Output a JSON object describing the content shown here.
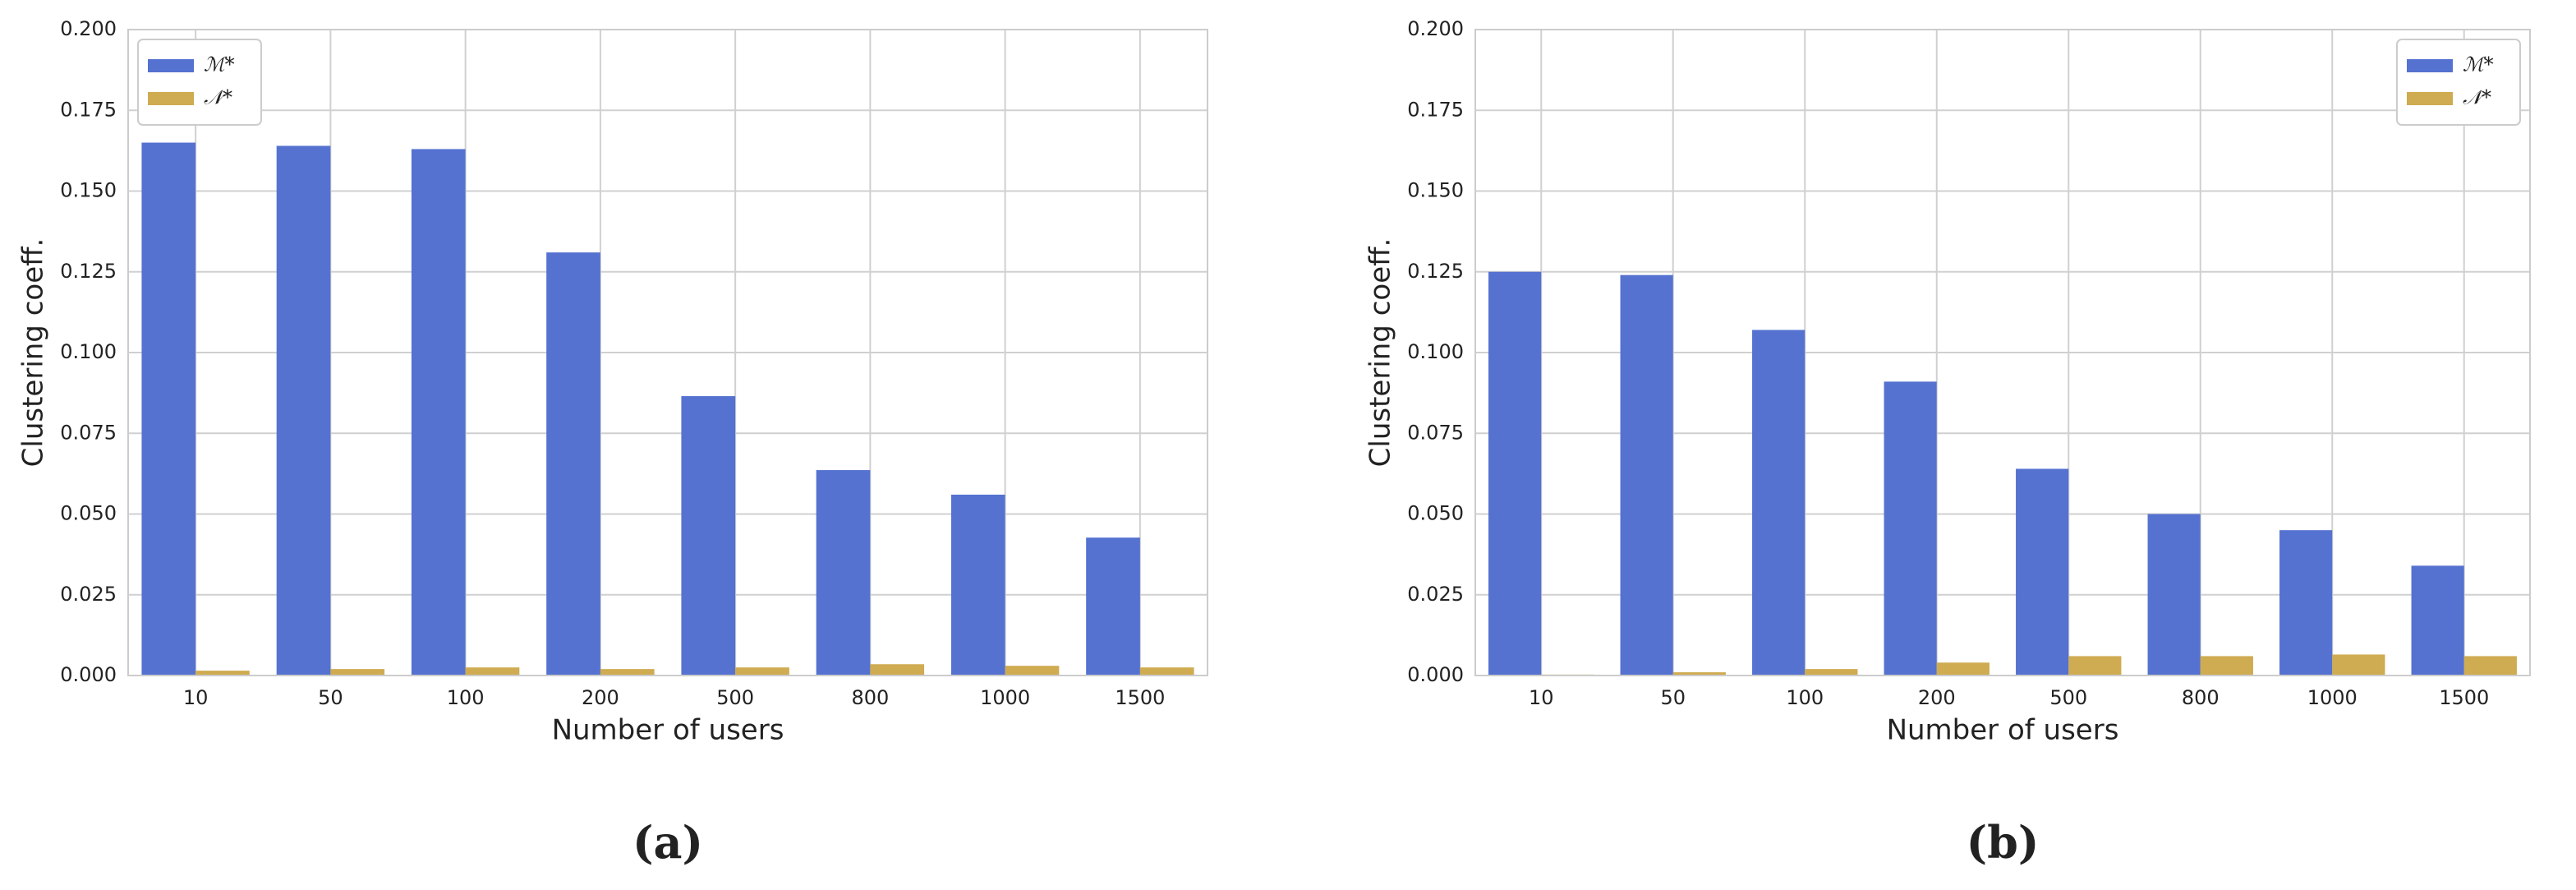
{
  "chart_data": [
    {
      "type": "bar",
      "caption": "(a)",
      "xlabel": "Number of users",
      "ylabel": "Clustering coeff.",
      "categories": [
        "10",
        "50",
        "100",
        "200",
        "500",
        "800",
        "1000",
        "1500"
      ],
      "series": [
        {
          "name": "ℳ*",
          "color": "#5572d0",
          "values": [
            0.165,
            0.164,
            0.163,
            0.131,
            0.0865,
            0.0636,
            0.056,
            0.0427
          ]
        },
        {
          "name": "𝒩*",
          "color": "#cfab51",
          "values": [
            0.0015,
            0.002,
            0.0025,
            0.002,
            0.0025,
            0.0035,
            0.003,
            0.0025
          ]
        }
      ],
      "ylim": [
        0,
        0.2
      ],
      "yticks": [
        {
          "value": 0,
          "label": "0.000"
        },
        0.025,
        {
          "value": 0.05,
          "label": "0.050"
        },
        0.075,
        {
          "value": 0.1,
          "label": "0.100"
        },
        0.125,
        {
          "value": 0.15,
          "label": "0.150"
        },
        0.175,
        {
          "value": 0.2,
          "label": "0.200"
        }
      ],
      "grid": true,
      "legend": "upper left"
    },
    {
      "type": "bar",
      "caption": "(b)",
      "xlabel": "Number of users",
      "ylabel": "Clustering coeff.",
      "categories": [
        "10",
        "50",
        "100",
        "200",
        "500",
        "800",
        "1000",
        "1500"
      ],
      "series": [
        {
          "name": "ℳ*",
          "color": "#5572d0",
          "values": [
            0.125,
            0.124,
            0.107,
            0.091,
            0.064,
            0.05,
            0.045,
            0.034
          ]
        },
        {
          "name": "𝒩*",
          "color": "#cfab51",
          "values": [
            0.0003,
            0.001,
            0.002,
            0.004,
            0.006,
            0.006,
            0.0065,
            0.006
          ]
        }
      ],
      "ylim": [
        0,
        0.2
      ],
      "yticks": [
        {
          "value": 0,
          "label": "0.000"
        },
        0.025,
        {
          "value": 0.05,
          "label": "0.050"
        },
        0.075,
        {
          "value": 0.1,
          "label": "0.100"
        },
        0.125,
        {
          "value": 0.15,
          "label": "0.150"
        },
        0.175,
        {
          "value": 0.2,
          "label": "0.200"
        }
      ],
      "grid": true,
      "legend": "upper right"
    }
  ]
}
